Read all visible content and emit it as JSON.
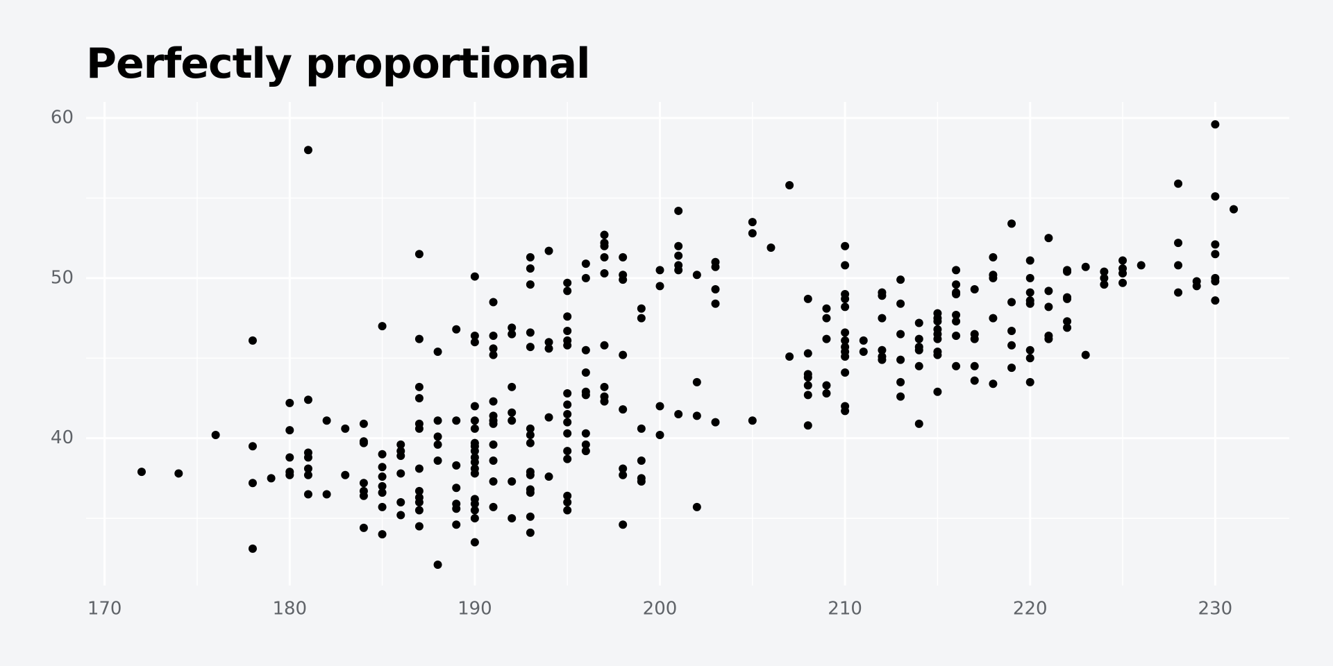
{
  "chart_data": {
    "type": "scatter",
    "title": "Perfectly proportional",
    "x": [
      172,
      174,
      176,
      178,
      178,
      178,
      178,
      179,
      180,
      180,
      180,
      180,
      180,
      181,
      181,
      181,
      181,
      181,
      181,
      181,
      182,
      182,
      183,
      183,
      184,
      184,
      184,
      184,
      184,
      184,
      184,
      185,
      185,
      185,
      185,
      185,
      185,
      185,
      185,
      186,
      186,
      186,
      186,
      186,
      186,
      187,
      187,
      187,
      187,
      187,
      187,
      187,
      187,
      187,
      187,
      187,
      187,
      188,
      188,
      188,
      188,
      188,
      188,
      189,
      189,
      189,
      189,
      189,
      189,
      189,
      190,
      190,
      190,
      190,
      190,
      190,
      190,
      190,
      190,
      190,
      190,
      190,
      190,
      190,
      190,
      190,
      190,
      190,
      191,
      191,
      191,
      191,
      191,
      191,
      191,
      191,
      191,
      191,
      191,
      191,
      192,
      192,
      192,
      192,
      192,
      192,
      192,
      193,
      193,
      193,
      193,
      193,
      193,
      193,
      193,
      193,
      193,
      193,
      193,
      193,
      193,
      194,
      194,
      194,
      194,
      194,
      195,
      195,
      195,
      195,
      195,
      195,
      195,
      195,
      195,
      195,
      195,
      195,
      195,
      195,
      195,
      195,
      196,
      196,
      196,
      196,
      196,
      196,
      196,
      196,
      196,
      197,
      197,
      197,
      197,
      197,
      197,
      197,
      197,
      197,
      198,
      198,
      198,
      198,
      198,
      198,
      198,
      198,
      199,
      199,
      199,
      199,
      199,
      199,
      200,
      200,
      200,
      200,
      201,
      201,
      201,
      201,
      201,
      201,
      202,
      202,
      202,
      202,
      203,
      203,
      203,
      203,
      203,
      205,
      205,
      205,
      206,
      207,
      207,
      208,
      208,
      208,
      208,
      208,
      208,
      208,
      209,
      209,
      209,
      209,
      209,
      210,
      210,
      210,
      210,
      210,
      210,
      210,
      210,
      210,
      210,
      210,
      210,
      210,
      211,
      211,
      212,
      212,
      212,
      212,
      212,
      212,
      213,
      213,
      213,
      213,
      213,
      213,
      214,
      214,
      214,
      214,
      214,
      214,
      215,
      215,
      215,
      215,
      215,
      215,
      215,
      215,
      215,
      216,
      216,
      216,
      216,
      216,
      216,
      216,
      216,
      217,
      217,
      217,
      217,
      217,
      218,
      218,
      218,
      218,
      218,
      219,
      219,
      219,
      219,
      219,
      220,
      220,
      220,
      220,
      220,
      220,
      220,
      220,
      221,
      221,
      221,
      221,
      221,
      222,
      222,
      222,
      222,
      222,
      222,
      223,
      223,
      224,
      224,
      224,
      225,
      225,
      225,
      225,
      226,
      228,
      228,
      228,
      228,
      229,
      229,
      230,
      230,
      230,
      230,
      230,
      230,
      230,
      231
    ],
    "values": [
      37.9,
      37.8,
      40.2,
      46.1,
      39.5,
      37.2,
      33.1,
      37.5,
      42.2,
      40.5,
      38.8,
      37.9,
      37.7,
      58.0,
      42.4,
      39.1,
      38.8,
      38.1,
      37.7,
      36.5,
      41.1,
      36.5,
      40.6,
      37.7,
      40.9,
      39.8,
      39.7,
      37.2,
      36.7,
      36.4,
      34.4,
      47.0,
      39.0,
      38.2,
      37.6,
      37.0,
      36.6,
      35.7,
      34.0,
      39.6,
      39.2,
      38.9,
      37.8,
      36.0,
      35.2,
      51.5,
      46.2,
      43.2,
      42.5,
      40.9,
      40.6,
      38.1,
      36.7,
      36.3,
      36.0,
      35.5,
      34.5,
      45.4,
      41.1,
      40.1,
      39.6,
      38.6,
      32.1,
      46.8,
      41.1,
      38.3,
      36.9,
      35.9,
      35.6,
      34.6,
      50.1,
      46.4,
      46.0,
      42.0,
      41.1,
      40.6,
      39.7,
      39.5,
      39.2,
      38.8,
      38.5,
      38.1,
      37.8,
      36.2,
      35.9,
      35.5,
      35.0,
      33.5,
      48.5,
      46.4,
      45.6,
      45.2,
      42.3,
      41.4,
      41.1,
      40.9,
      39.6,
      38.6,
      37.3,
      35.7,
      46.9,
      46.5,
      43.2,
      41.6,
      41.1,
      37.3,
      35.0,
      51.3,
      50.6,
      49.6,
      46.6,
      45.7,
      40.6,
      40.2,
      39.7,
      37.9,
      37.7,
      36.8,
      36.6,
      35.1,
      34.1,
      51.7,
      46.0,
      45.6,
      41.3,
      37.6,
      49.7,
      49.2,
      47.6,
      46.7,
      46.1,
      45.8,
      42.8,
      42.1,
      41.5,
      41.0,
      40.3,
      39.2,
      38.7,
      36.4,
      36.0,
      35.5,
      50.9,
      50.0,
      45.5,
      44.1,
      42.9,
      42.7,
      40.3,
      39.6,
      39.2,
      52.7,
      52.2,
      52.0,
      51.3,
      50.3,
      45.8,
      43.2,
      42.6,
      42.3,
      51.3,
      50.2,
      49.9,
      45.2,
      41.8,
      38.1,
      37.7,
      34.6,
      48.1,
      47.5,
      40.6,
      38.6,
      37.5,
      37.3,
      50.5,
      49.5,
      42.0,
      40.2,
      54.2,
      52.0,
      51.4,
      50.8,
      50.5,
      41.5,
      50.2,
      43.5,
      41.4,
      35.7,
      51.0,
      50.7,
      49.3,
      48.4,
      41.0,
      53.5,
      52.8,
      41.1,
      51.9,
      55.8,
      45.1,
      48.7,
      45.3,
      44.0,
      43.8,
      43.3,
      42.7,
      40.8,
      48.1,
      47.5,
      46.2,
      43.3,
      42.8,
      52.0,
      50.8,
      49.0,
      48.7,
      48.2,
      46.6,
      46.1,
      45.7,
      45.4,
      45.1,
      44.1,
      42.0,
      41.7,
      46.1,
      45.4,
      49.1,
      48.9,
      47.5,
      45.5,
      45.1,
      44.9,
      49.9,
      48.4,
      46.5,
      44.9,
      43.5,
      42.6,
      47.2,
      46.2,
      45.7,
      45.5,
      44.5,
      40.9,
      47.8,
      47.5,
      47.3,
      46.8,
      46.5,
      46.2,
      45.4,
      45.2,
      42.9,
      50.5,
      49.6,
      49.1,
      49.0,
      47.7,
      47.3,
      46.4,
      44.5,
      49.3,
      46.5,
      46.2,
      44.5,
      43.6,
      51.3,
      50.2,
      50.0,
      47.5,
      43.4,
      53.4,
      48.5,
      46.7,
      45.8,
      44.4,
      51.1,
      50.0,
      49.1,
      48.6,
      48.4,
      45.5,
      45.0,
      43.5,
      52.5,
      49.2,
      48.2,
      46.4,
      46.2,
      50.5,
      50.4,
      48.8,
      48.7,
      47.3,
      46.9,
      50.7,
      45.2,
      50.4,
      50.0,
      49.6,
      51.1,
      50.6,
      50.3,
      49.7,
      50.8,
      55.9,
      52.2,
      50.8,
      49.1,
      49.8,
      49.5,
      59.6,
      55.1,
      52.1,
      51.5,
      50.0,
      49.8,
      48.6,
      54.3
    ],
    "color": "#000000",
    "xlim": [
      169,
      234
    ],
    "ylim": [
      30.8,
      61
    ],
    "xticks": [
      170,
      180,
      190,
      200,
      210,
      220,
      230
    ],
    "yticks": [
      40,
      50,
      60
    ],
    "xminor_ticks": [
      175,
      185,
      195,
      205,
      215,
      225
    ],
    "yminor_ticks": [
      35,
      45,
      55
    ],
    "grid": true
  }
}
